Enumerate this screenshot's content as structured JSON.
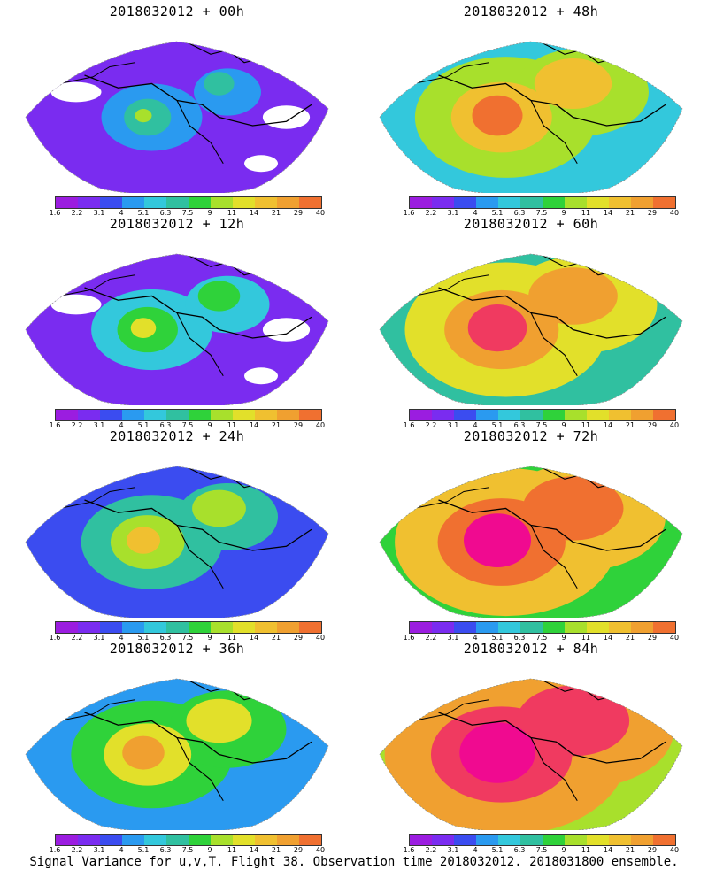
{
  "panels": [
    {
      "title": "2018032012  +  00h",
      "level": 0
    },
    {
      "title": "2018032012  +  48h",
      "level": 4
    },
    {
      "title": "2018032012  +  12h",
      "level": 1
    },
    {
      "title": "2018032012  +  60h",
      "level": 5
    },
    {
      "title": "2018032012  +  24h",
      "level": 2
    },
    {
      "title": "2018032012  +  72h",
      "level": 6
    },
    {
      "title": "2018032012  +  36h",
      "level": 3
    },
    {
      "title": "2018032012  +  84h",
      "level": 7
    }
  ],
  "colorbar": {
    "colors": [
      "#9b1de0",
      "#7a2cf0",
      "#3b4cf0",
      "#2a9af0",
      "#33c8dc",
      "#30c0a0",
      "#2fd23a",
      "#a8e02c",
      "#e2e02a",
      "#f0c030",
      "#f0a030",
      "#f07030",
      "#f03a60",
      "#f00a90"
    ],
    "tick_labels": [
      "1.6",
      "2.2",
      "3.1",
      "4",
      "5.1",
      "6.3",
      "7.5",
      "9",
      "11",
      "14",
      "21",
      "29",
      "40"
    ]
  },
  "footer": "Signal Variance for u,v,T. Flight 38. Observation time 2018032012. 2018031800 ensemble.",
  "map_colors": {
    "land": "#ffffff",
    "coast": "#000000",
    "grid": "#999999"
  }
}
